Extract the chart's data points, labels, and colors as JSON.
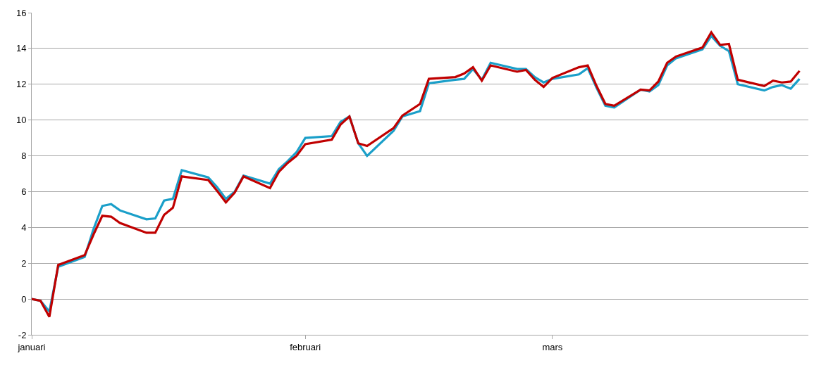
{
  "chart_data": {
    "type": "line",
    "x": [
      "--01-01",
      "--01-02",
      "--01-03",
      "--01-04",
      "--01-07",
      "--01-08",
      "--01-09",
      "--01-10",
      "--01-11",
      "--01-14",
      "--01-15",
      "--01-16",
      "--01-17",
      "--01-18",
      "--01-21",
      "--01-22",
      "--01-23",
      "--01-24",
      "--01-25",
      "--01-28",
      "--01-29",
      "--01-30",
      "--01-31",
      "--02-01",
      "--02-04",
      "--02-05",
      "--02-06",
      "--02-07",
      "--02-08",
      "--02-11",
      "--02-12",
      "--02-14",
      "--02-15",
      "--02-18",
      "--02-19",
      "--02-20",
      "--02-21",
      "--02-22",
      "--02-25",
      "--02-26",
      "--02-27",
      "--02-28",
      "--03-01",
      "--03-04",
      "--03-05",
      "--03-06",
      "--03-07",
      "--03-08",
      "--03-11",
      "--03-12",
      "--03-13",
      "--03-14",
      "--03-15",
      "--03-18",
      "--03-19",
      "--03-20",
      "--03-21",
      "--03-22",
      "--03-25",
      "--03-26",
      "--03-27",
      "--03-28",
      "--03-29"
    ],
    "series": [
      {
        "color": "#1a9fc9",
        "values": [
          0,
          -0.1,
          -0.7,
          1.8,
          2.35,
          3.9,
          5.2,
          5.3,
          4.95,
          4.45,
          4.5,
          5.5,
          5.6,
          7.2,
          6.8,
          6.25,
          5.6,
          6.0,
          6.9,
          6.45,
          7.25,
          7.7,
          8.2,
          9.0,
          9.1,
          9.9,
          10.2,
          8.7,
          8.0,
          9.4,
          10.2,
          10.5,
          12.05,
          12.25,
          12.3,
          12.85,
          12.25,
          13.2,
          12.85,
          12.85,
          12.4,
          12.1,
          12.3,
          12.55,
          12.9,
          11.8,
          10.8,
          10.7,
          11.7,
          11.6,
          11.95,
          13.05,
          13.45,
          13.95,
          14.7,
          14.15,
          13.85,
          12.0,
          11.65,
          11.85,
          11.95,
          11.75,
          12.3
        ]
      },
      {
        "color": "#c00000",
        "values": [
          0,
          -0.1,
          -1.0,
          1.9,
          2.45,
          3.6,
          4.65,
          4.6,
          4.25,
          3.7,
          3.7,
          4.7,
          5.1,
          6.85,
          6.65,
          6.05,
          5.4,
          5.95,
          6.85,
          6.2,
          7.1,
          7.6,
          8.0,
          8.65,
          8.9,
          9.75,
          10.2,
          8.7,
          8.55,
          9.55,
          10.25,
          10.9,
          12.3,
          12.4,
          12.6,
          12.95,
          12.2,
          13.05,
          12.7,
          12.8,
          12.25,
          11.85,
          12.35,
          12.95,
          13.05,
          11.9,
          10.9,
          10.8,
          11.7,
          11.65,
          12.15,
          13.2,
          13.55,
          14.05,
          14.9,
          14.2,
          14.25,
          12.25,
          11.9,
          12.2,
          12.1,
          12.15,
          12.75
        ]
      }
    ],
    "xlim": [
      "--01-01",
      "--03-30"
    ],
    "xticks": [
      {
        "value": "--01-01",
        "label": "januari"
      },
      {
        "value": "--02-01",
        "label": "februari"
      },
      {
        "value": "--03-01",
        "label": "mars"
      }
    ],
    "ylim": [
      -2,
      16
    ],
    "yticks": [
      -2,
      0,
      2,
      4,
      6,
      8,
      10,
      12,
      14,
      16
    ],
    "grid": "y",
    "marker": "none",
    "line_style": "solid"
  }
}
